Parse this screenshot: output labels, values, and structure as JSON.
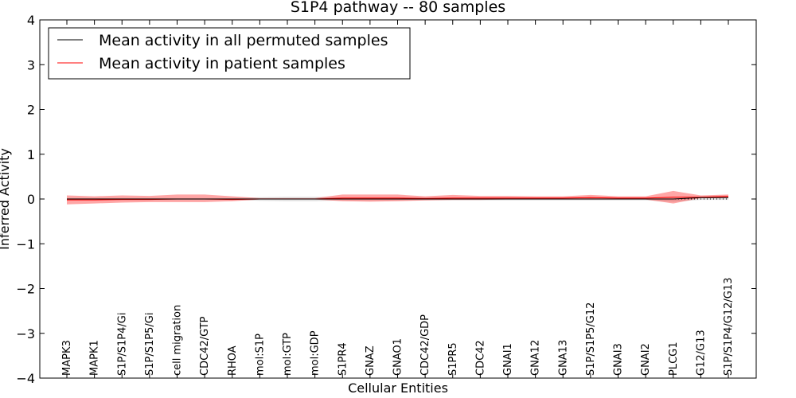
{
  "chart_data": {
    "type": "line",
    "title": "S1P4 pathway -- 80 samples",
    "xlabel": "Cellular Entities",
    "ylabel": "Inferred Activity",
    "ylim": [
      -4,
      4
    ],
    "yticks": [
      -4,
      -3,
      -2,
      -1,
      0,
      1,
      2,
      3,
      4
    ],
    "ytick_labels": [
      "−4",
      "−3",
      "−2",
      "−1",
      "0",
      "1",
      "2",
      "3",
      "4"
    ],
    "grid": false,
    "legend_position": "top-left",
    "categories": [
      "MAPK3",
      "MAPK1",
      "S1P/S1P4/Gi",
      "S1P/S1P5/Gi",
      "cell migration",
      "CDC42/GTP",
      "RHOA",
      "mol:S1P",
      "mol:GTP",
      "mol:GDP",
      "S1PR4",
      "GNAZ",
      "GNAO1",
      "CDC42/GDP",
      "S1PR5",
      "CDC42",
      "GNAI1",
      "GNA12",
      "GNA13",
      "S1P/S1P5/G12",
      "GNAI3",
      "GNAI2",
      "PLCG1",
      "G12/G13",
      "S1P/S1P4/G12/G13"
    ],
    "series": [
      {
        "name": "Mean activity in all permuted samples",
        "color": "#000000",
        "values": [
          0,
          0,
          0,
          0,
          0,
          0,
          0,
          0,
          0,
          0,
          0,
          0,
          0,
          0,
          0,
          0,
          0,
          0,
          0,
          0,
          0,
          0,
          0,
          0.03,
          0.03
        ],
        "band_lower": [
          -0.02,
          -0.02,
          -0.02,
          -0.02,
          -0.02,
          -0.02,
          -0.02,
          -0.04,
          -0.05,
          -0.05,
          -0.03,
          -0.03,
          -0.03,
          -0.03,
          -0.03,
          -0.03,
          -0.03,
          -0.03,
          -0.03,
          -0.03,
          -0.03,
          -0.03,
          -0.06,
          -0.02,
          -0.02
        ],
        "band_upper": [
          0.02,
          0.02,
          0.02,
          0.02,
          0.02,
          0.02,
          0.02,
          0.04,
          0.05,
          0.05,
          0.03,
          0.03,
          0.03,
          0.03,
          0.03,
          0.03,
          0.03,
          0.03,
          0.03,
          0.03,
          0.03,
          0.03,
          0.04,
          0.05,
          0.05
        ]
      },
      {
        "name": "Mean activity in patient samples",
        "color": "#ff0000",
        "values": [
          -0.02,
          -0.02,
          -0.01,
          -0.01,
          0.0,
          0.0,
          -0.01,
          0.0,
          0.0,
          0.0,
          0.02,
          0.02,
          0.02,
          0.01,
          0.02,
          0.02,
          0.02,
          0.02,
          0.02,
          0.03,
          0.02,
          0.02,
          0.04,
          0.04,
          0.06
        ],
        "band_lower": [
          -0.12,
          -0.1,
          -0.08,
          -0.07,
          -0.07,
          -0.07,
          -0.05,
          -0.01,
          -0.01,
          -0.01,
          -0.05,
          -0.06,
          -0.05,
          -0.03,
          -0.02,
          -0.02,
          -0.01,
          -0.01,
          -0.01,
          -0.01,
          -0.01,
          -0.01,
          -0.1,
          0.02,
          0.02
        ],
        "band_upper": [
          0.08,
          0.06,
          0.08,
          0.07,
          0.1,
          0.1,
          0.06,
          0.02,
          0.02,
          0.02,
          0.1,
          0.1,
          0.1,
          0.06,
          0.09,
          0.07,
          0.07,
          0.06,
          0.06,
          0.09,
          0.06,
          0.06,
          0.18,
          0.08,
          0.1
        ]
      }
    ]
  }
}
